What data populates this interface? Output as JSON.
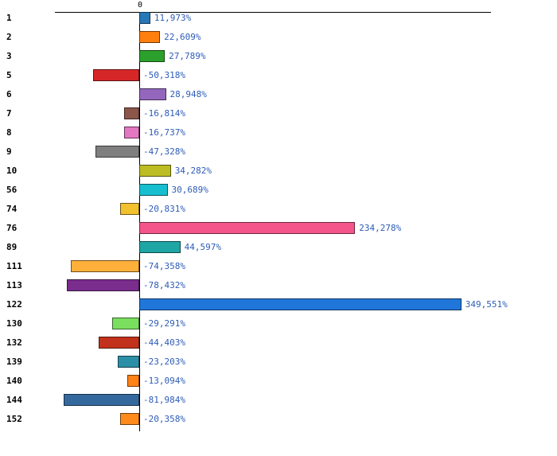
{
  "chart_data": {
    "type": "bar",
    "orientation": "horizontal",
    "title": "",
    "xlabel": "",
    "ylabel": "",
    "zero_label": "0",
    "value_suffix": "%",
    "decimal_separator": ",",
    "grid": false,
    "legend": false,
    "xlim": [
      -90,
      360
    ],
    "categories": [
      "1",
      "2",
      "3",
      "5",
      "6",
      "7",
      "8",
      "9",
      "10",
      "56",
      "74",
      "76",
      "89",
      "111",
      "113",
      "122",
      "130",
      "132",
      "139",
      "140",
      "144",
      "152"
    ],
    "values": [
      11.973,
      22.609,
      27.789,
      -50.318,
      28.948,
      -16.814,
      -16.737,
      -47.328,
      34.282,
      30.689,
      -20.831,
      234.278,
      44.597,
      -74.358,
      -78.432,
      349.551,
      -29.291,
      -44.403,
      -23.203,
      -13.094,
      -81.984,
      -20.358
    ],
    "value_labels": [
      "11,973%",
      "22,609%",
      "27,789%",
      "-50,318%",
      "28,948%",
      "-16,814%",
      "-16,737%",
      "-47,328%",
      "34,282%",
      "30,689%",
      "-20,831%",
      "234,278%",
      "44,597%",
      "-74,358%",
      "-78,432%",
      "349,551%",
      "-29,291%",
      "-44,403%",
      "-23,203%",
      "-13,094%",
      "-81,984%",
      "-20,358%"
    ],
    "bar_colors": [
      "#2878b8",
      "#ff7f0e",
      "#2ca02c",
      "#d62728",
      "#9467bd",
      "#8c564b",
      "#e377c2",
      "#7f7f7f",
      "#bcbd22",
      "#17becf",
      "#f2c12e",
      "#f4558a",
      "#20a5a5",
      "#ffb03b",
      "#7a2d8c",
      "#2176d9",
      "#7ade5f",
      "#c2311c",
      "#2b8fa8",
      "#ff8316",
      "#34699d",
      "#ff8c1a"
    ],
    "value_label_color": "#2e5cb8",
    "axis_color": "#000000"
  }
}
